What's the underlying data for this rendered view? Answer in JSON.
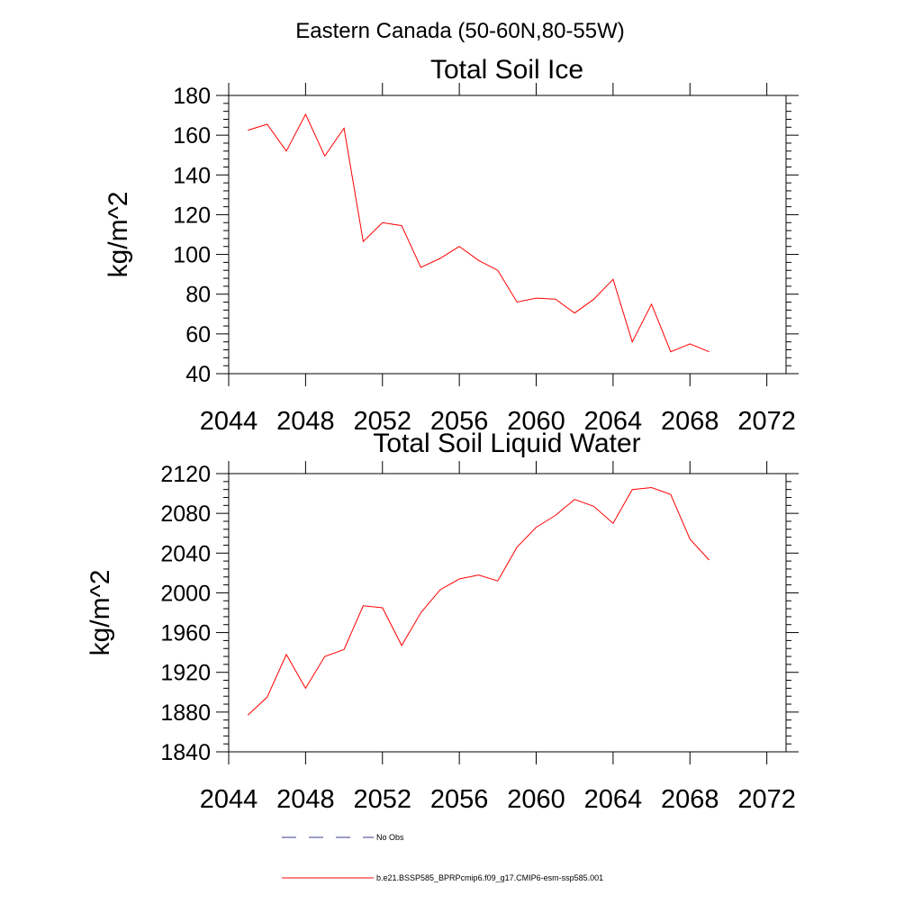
{
  "figure": {
    "title": "Eastern Canada (50-60N,80-55W)"
  },
  "legend": {
    "entries": [
      {
        "label": "No Obs",
        "style": "dashed",
        "color": "#3b3b8f"
      },
      {
        "label": "b.e21.BSSP585_BPRPcmip6.f09_g17.CMIP6-esm-ssp585.001",
        "style": "solid",
        "color": "#ff0000"
      }
    ]
  },
  "chart_data": [
    {
      "type": "line",
      "title": "Total Soil Ice",
      "xlabel": "",
      "ylabel": "kg/m^2",
      "xlim": [
        2044,
        2073
      ],
      "ylim": [
        40,
        180
      ],
      "xticks": [
        2044,
        2048,
        2052,
        2056,
        2060,
        2064,
        2068,
        2072
      ],
      "yticks": [
        40,
        60,
        80,
        100,
        120,
        140,
        160,
        180
      ],
      "grid": false,
      "series": [
        {
          "name": "b.e21.BSSP585_BPRPcmip6.f09_g17.CMIP6-esm-ssp585.001",
          "color": "#ff0000",
          "x": [
            2045,
            2046,
            2047,
            2048,
            2049,
            2050,
            2051,
            2052,
            2053,
            2054,
            2055,
            2056,
            2057,
            2058,
            2059,
            2060,
            2061,
            2062,
            2063,
            2064,
            2065,
            2066,
            2067,
            2068,
            2069
          ],
          "y": [
            162.5,
            165.5,
            152,
            170.5,
            149.5,
            163.5,
            106.5,
            116,
            114.5,
            93.5,
            98,
            104,
            97,
            92,
            76,
            78,
            77.5,
            70.5,
            77.5,
            87.5,
            56,
            75,
            51,
            55,
            51
          ]
        }
      ]
    },
    {
      "type": "line",
      "title": "Total Soil Liquid Water",
      "xlabel": "",
      "ylabel": "kg/m^2",
      "xlim": [
        2044,
        2073
      ],
      "ylim": [
        1840,
        2120
      ],
      "xticks": [
        2044,
        2048,
        2052,
        2056,
        2060,
        2064,
        2068,
        2072
      ],
      "yticks": [
        1840,
        1880,
        1920,
        1960,
        2000,
        2040,
        2080,
        2120
      ],
      "grid": false,
      "series": [
        {
          "name": "b.e21.BSSP585_BPRPcmip6.f09_g17.CMIP6-esm-ssp585.001",
          "color": "#ff0000",
          "x": [
            2045,
            2046,
            2047,
            2048,
            2049,
            2050,
            2051,
            2052,
            2053,
            2054,
            2055,
            2056,
            2057,
            2058,
            2059,
            2060,
            2061,
            2062,
            2063,
            2064,
            2065,
            2066,
            2067,
            2068,
            2069
          ],
          "y": [
            1877,
            1895,
            1938,
            1904,
            1936,
            1943,
            1987,
            1985,
            1947,
            1980,
            2003,
            2014,
            2018,
            2012,
            2046,
            2066,
            2078,
            2094,
            2087,
            2070,
            2104,
            2106,
            2099,
            2054,
            2033
          ]
        }
      ]
    }
  ]
}
